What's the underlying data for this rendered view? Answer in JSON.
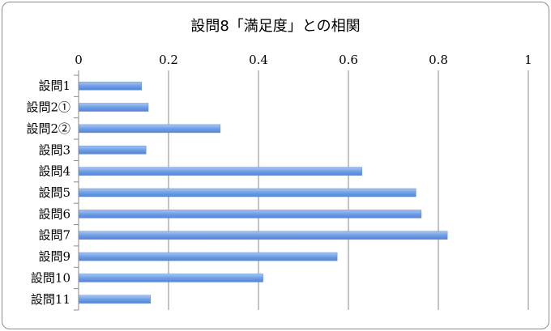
{
  "chart_data": {
    "type": "bar",
    "orientation": "horizontal",
    "title": "設問8「満足度」との相関",
    "xlabel": "",
    "ylabel": "",
    "xlim": [
      0,
      1
    ],
    "xticks": [
      0,
      0.2,
      0.4,
      0.6,
      0.8,
      1
    ],
    "xtick_labels": [
      "0",
      "0.2",
      "0.4",
      "0.6",
      "0.8",
      "1"
    ],
    "axis_position": "top",
    "grid": true,
    "legend": "none",
    "bar_color": "#6f9fe6",
    "categories": [
      "設問1",
      "設問2①",
      "設問2②",
      "設問3",
      "設問4",
      "設問5",
      "設問6",
      "設問7",
      "設問9",
      "設問10",
      "設問11"
    ],
    "values": [
      0.14,
      0.155,
      0.315,
      0.15,
      0.63,
      0.75,
      0.762,
      0.82,
      0.575,
      0.41,
      0.16
    ]
  }
}
